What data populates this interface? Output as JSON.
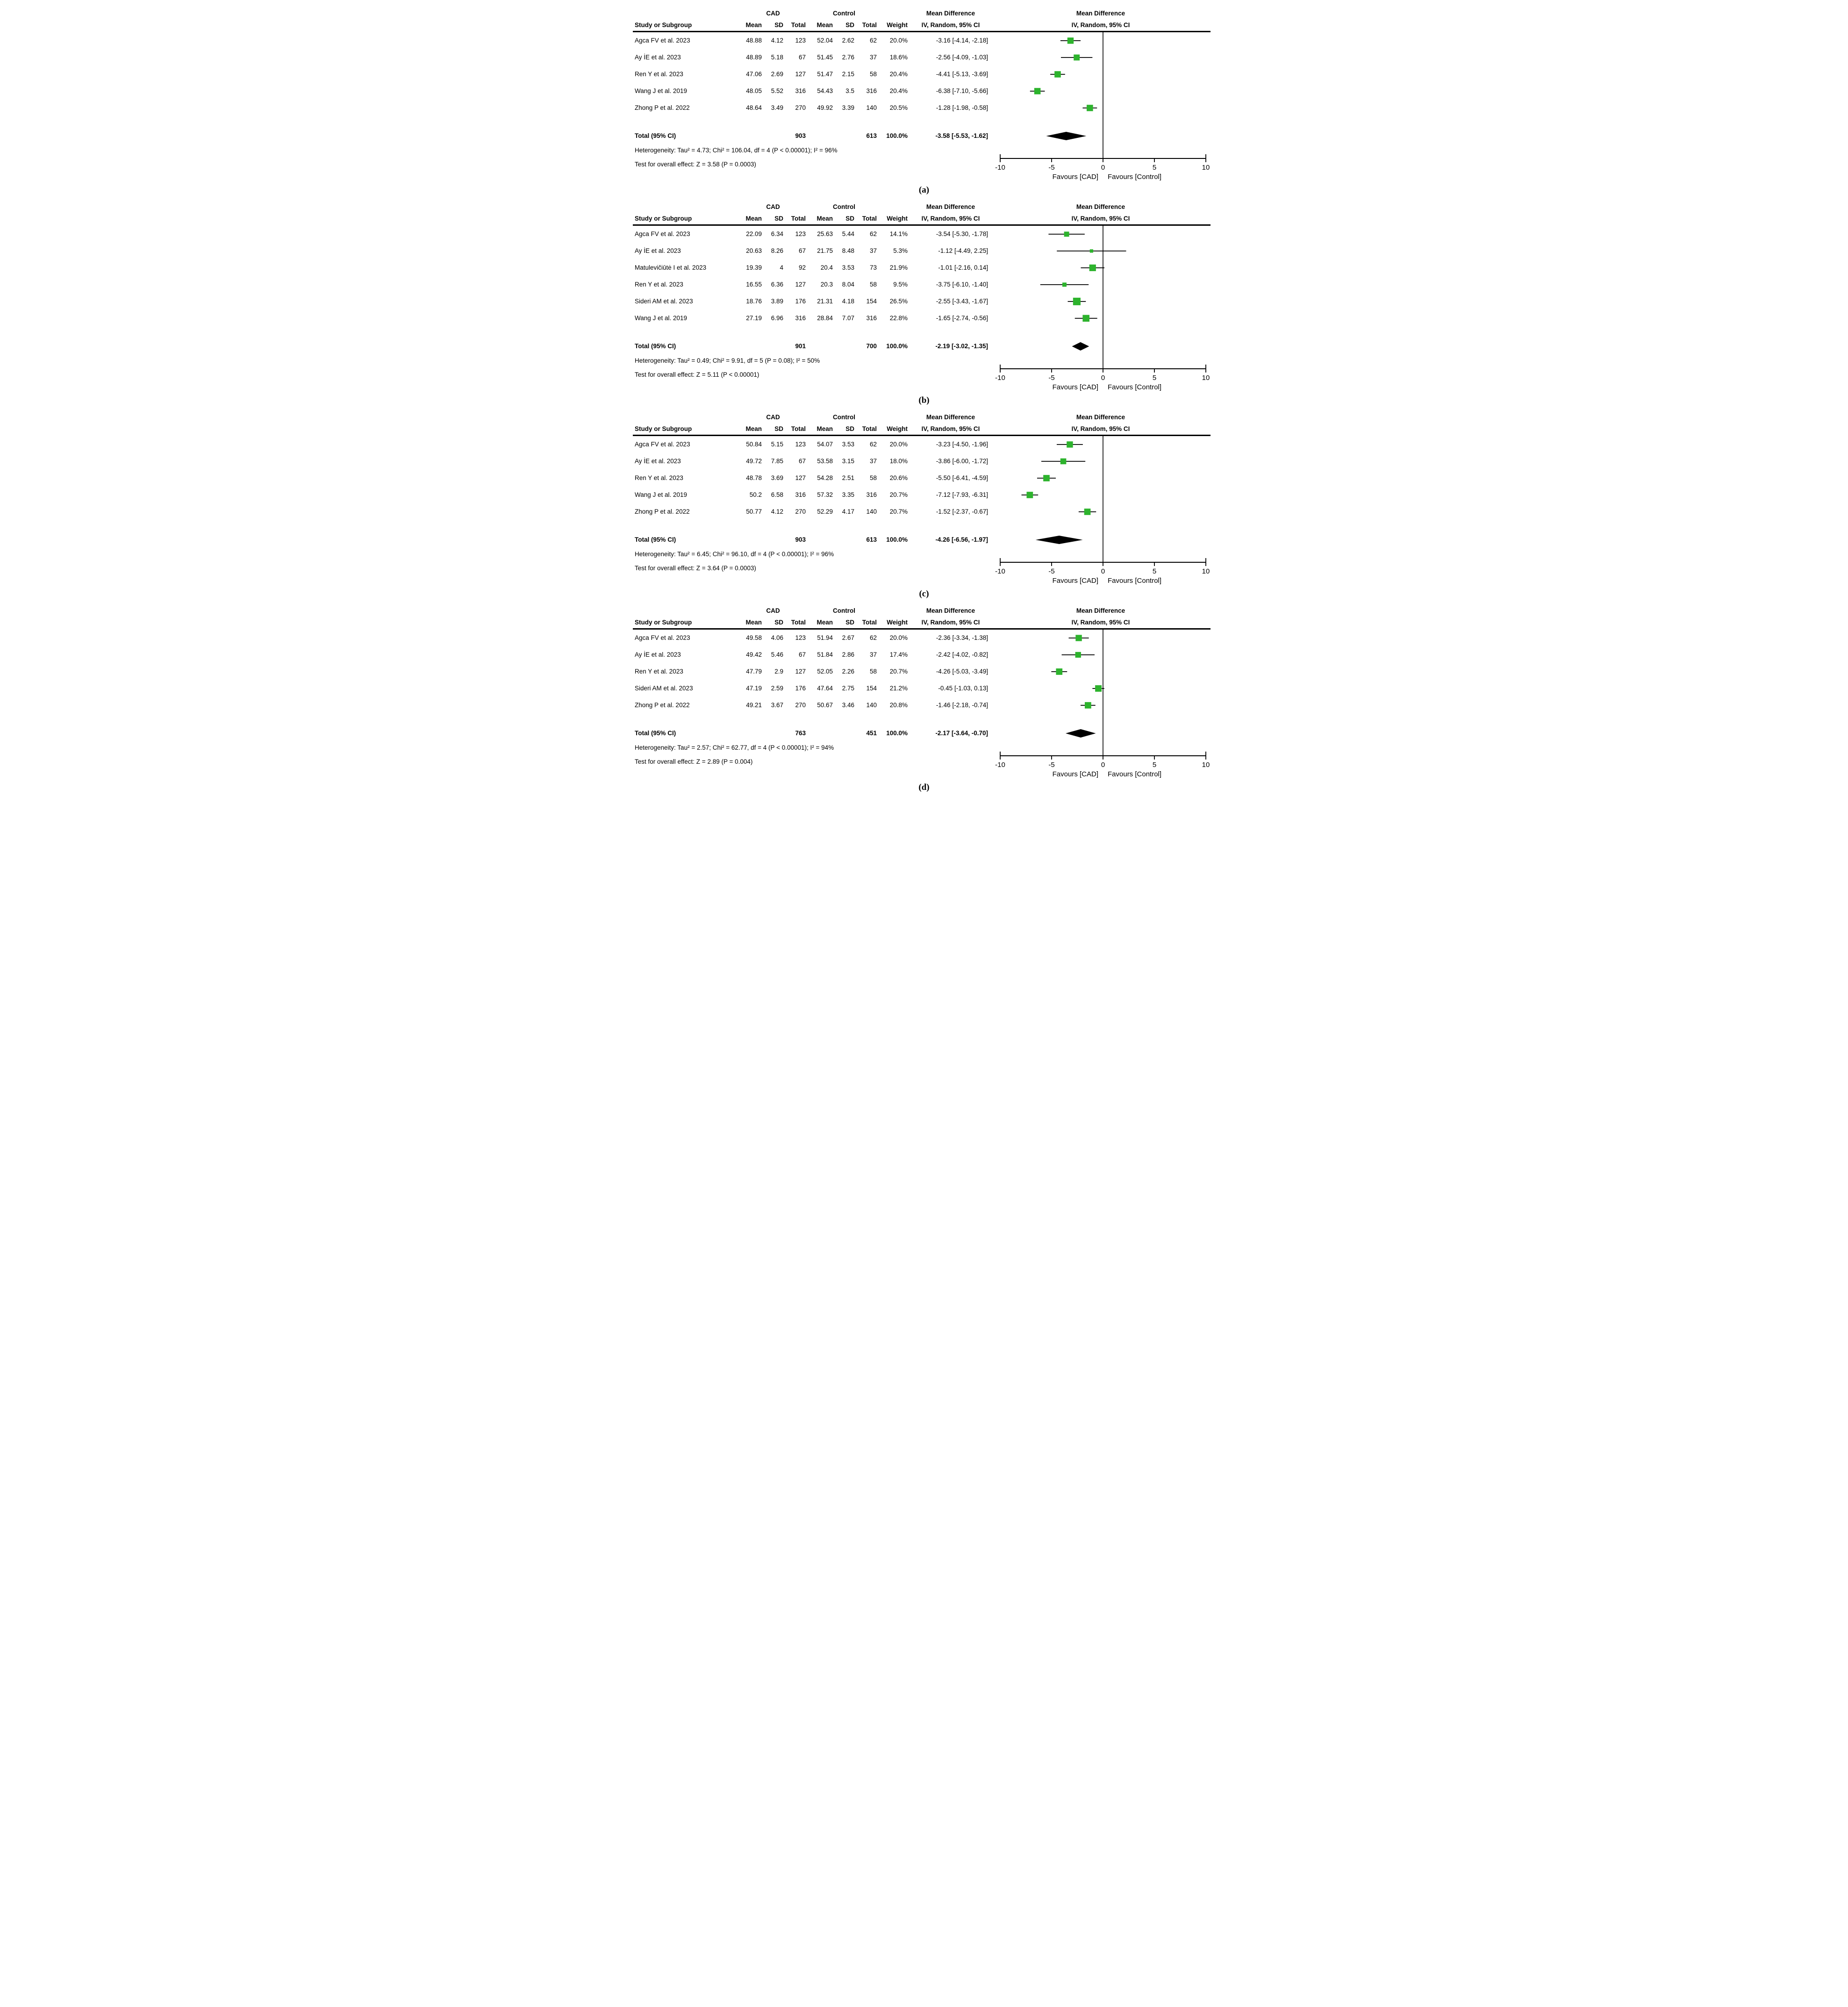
{
  "colors": {
    "marker": "#2db32d",
    "diamond": "#000000",
    "line": "#000000",
    "text": "#000000"
  },
  "chart_data": [
    {
      "type": "forest",
      "panel_label": "(a)",
      "group_headers": {
        "cad": "CAD",
        "control": "Control"
      },
      "study_col_header": "Study or Subgroup",
      "col_headers": [
        "Mean",
        "SD",
        "Total",
        "Mean",
        "SD",
        "Total",
        "Weight"
      ],
      "md_header_line1": "Mean Difference",
      "md_header_line2": "IV, Random, 95% CI",
      "plot_title_line1": "Mean Difference",
      "plot_title_line2": "IV, Random, 95% CI",
      "rows": [
        {
          "study": "Agca FV  et al. 2023",
          "cad_mean": "48.88",
          "cad_sd": "4.12",
          "cad_total": "123",
          "ctrl_mean": "52.04",
          "ctrl_sd": "2.62",
          "ctrl_total": "62",
          "weight": "20.0%",
          "weight_value": 20.0,
          "md": -3.16,
          "ci_low": -4.14,
          "ci_high": -2.18,
          "ci_text": "-3.16 [-4.14, -2.18]"
        },
        {
          "study": "Ay İE  et al. 2023",
          "cad_mean": "48.89",
          "cad_sd": "5.18",
          "cad_total": "67",
          "ctrl_mean": "51.45",
          "ctrl_sd": "2.76",
          "ctrl_total": "37",
          "weight": "18.6%",
          "weight_value": 18.6,
          "md": -2.56,
          "ci_low": -4.09,
          "ci_high": -1.03,
          "ci_text": "-2.56 [-4.09, -1.03]"
        },
        {
          "study": "Ren Y  et al. 2023",
          "cad_mean": "47.06",
          "cad_sd": "2.69",
          "cad_total": "127",
          "ctrl_mean": "51.47",
          "ctrl_sd": "2.15",
          "ctrl_total": "58",
          "weight": "20.4%",
          "weight_value": 20.4,
          "md": -4.41,
          "ci_low": -5.13,
          "ci_high": -3.69,
          "ci_text": "-4.41 [-5.13, -3.69]"
        },
        {
          "study": "Wang J  et al. 2019",
          "cad_mean": "48.05",
          "cad_sd": "5.52",
          "cad_total": "316",
          "ctrl_mean": "54.43",
          "ctrl_sd": "3.5",
          "ctrl_total": "316",
          "weight": "20.4%",
          "weight_value": 20.4,
          "md": -6.38,
          "ci_low": -7.1,
          "ci_high": -5.66,
          "ci_text": "-6.38 [-7.10, -5.66]"
        },
        {
          "study": "Zhong P  et al. 2022",
          "cad_mean": "48.64",
          "cad_sd": "3.49",
          "cad_total": "270",
          "ctrl_mean": "49.92",
          "ctrl_sd": "3.39",
          "ctrl_total": "140",
          "weight": "20.5%",
          "weight_value": 20.5,
          "md": -1.28,
          "ci_low": -1.98,
          "ci_high": -0.58,
          "ci_text": "-1.28 [-1.98, -0.58]"
        }
      ],
      "total": {
        "label": "Total (95% CI)",
        "cad_total": "903",
        "ctrl_total": "613",
        "weight": "100.0%",
        "md": -3.58,
        "ci_low": -5.53,
        "ci_high": -1.62,
        "ci_text": "-3.58 [-5.53, -1.62]"
      },
      "heterogeneity": "Heterogeneity: Tau² = 4.73; Chi² = 106.04, df = 4 (P < 0.00001); I² = 96%",
      "overall_effect": "Test for overall effect: Z = 3.58 (P = 0.0003)",
      "axis": {
        "min": -10,
        "max": 10,
        "ticks": [
          -10,
          -5,
          0,
          5,
          10
        ],
        "favours_left": "Favours [CAD]",
        "favours_right": "Favours [Control]"
      }
    },
    {
      "type": "forest",
      "panel_label": "(b)",
      "group_headers": {
        "cad": "CAD",
        "control": "Control"
      },
      "study_col_header": "Study or Subgroup",
      "col_headers": [
        "Mean",
        "SD",
        "Total",
        "Mean",
        "SD",
        "Total",
        "Weight"
      ],
      "md_header_line1": "Mean Difference",
      "md_header_line2": "IV, Random, 95% CI",
      "plot_title_line1": "Mean Difference",
      "plot_title_line2": "IV, Random, 95% CI",
      "rows": [
        {
          "study": "Agca FV  et al. 2023",
          "cad_mean": "22.09",
          "cad_sd": "6.34",
          "cad_total": "123",
          "ctrl_mean": "25.63",
          "ctrl_sd": "5.44",
          "ctrl_total": "62",
          "weight": "14.1%",
          "weight_value": 14.1,
          "md": -3.54,
          "ci_low": -5.3,
          "ci_high": -1.78,
          "ci_text": "-3.54 [-5.30, -1.78]"
        },
        {
          "study": "Ay İE  et al. 2023",
          "cad_mean": "20.63",
          "cad_sd": "8.26",
          "cad_total": "67",
          "ctrl_mean": "21.75",
          "ctrl_sd": "8.48",
          "ctrl_total": "37",
          "weight": "5.3%",
          "weight_value": 5.3,
          "md": -1.12,
          "ci_low": -4.49,
          "ci_high": 2.25,
          "ci_text": "-1.12 [-4.49, 2.25]"
        },
        {
          "study": "Matulevičiūtė I  et al. 2023",
          "cad_mean": "19.39",
          "cad_sd": "4",
          "cad_total": "92",
          "ctrl_mean": "20.4",
          "ctrl_sd": "3.53",
          "ctrl_total": "73",
          "weight": "21.9%",
          "weight_value": 21.9,
          "md": -1.01,
          "ci_low": -2.16,
          "ci_high": 0.14,
          "ci_text": "-1.01 [-2.16, 0.14]"
        },
        {
          "study": "Ren Y  et al. 2023",
          "cad_mean": "16.55",
          "cad_sd": "6.36",
          "cad_total": "127",
          "ctrl_mean": "20.3",
          "ctrl_sd": "8.04",
          "ctrl_total": "58",
          "weight": "9.5%",
          "weight_value": 9.5,
          "md": -3.75,
          "ci_low": -6.1,
          "ci_high": -1.4,
          "ci_text": "-3.75 [-6.10, -1.40]"
        },
        {
          "study": "Sideri AM  et al. 2023",
          "cad_mean": "18.76",
          "cad_sd": "3.89",
          "cad_total": "176",
          "ctrl_mean": "21.31",
          "ctrl_sd": "4.18",
          "ctrl_total": "154",
          "weight": "26.5%",
          "weight_value": 26.5,
          "md": -2.55,
          "ci_low": -3.43,
          "ci_high": -1.67,
          "ci_text": "-2.55 [-3.43, -1.67]"
        },
        {
          "study": "Wang J  et al. 2019",
          "cad_mean": "27.19",
          "cad_sd": "6.96",
          "cad_total": "316",
          "ctrl_mean": "28.84",
          "ctrl_sd": "7.07",
          "ctrl_total": "316",
          "weight": "22.8%",
          "weight_value": 22.8,
          "md": -1.65,
          "ci_low": -2.74,
          "ci_high": -0.56,
          "ci_text": "-1.65 [-2.74, -0.56]"
        }
      ],
      "total": {
        "label": "Total (95% CI)",
        "cad_total": "901",
        "ctrl_total": "700",
        "weight": "100.0%",
        "md": -2.19,
        "ci_low": -3.02,
        "ci_high": -1.35,
        "ci_text": "-2.19 [-3.02, -1.35]"
      },
      "heterogeneity": "Heterogeneity: Tau² = 0.49; Chi² = 9.91, df = 5 (P = 0.08); I² = 50%",
      "overall_effect": "Test for overall effect: Z = 5.11 (P < 0.00001)",
      "axis": {
        "min": -10,
        "max": 10,
        "ticks": [
          -10,
          -5,
          0,
          5,
          10
        ],
        "favours_left": "Favours [CAD]",
        "favours_right": "Favours [Control]"
      }
    },
    {
      "type": "forest",
      "panel_label": "(c)",
      "group_headers": {
        "cad": "CAD",
        "control": "Control"
      },
      "study_col_header": "Study or Subgroup",
      "col_headers": [
        "Mean",
        "SD",
        "Total",
        "Mean",
        "SD",
        "Total",
        "Weight"
      ],
      "md_header_line1": "Mean Difference",
      "md_header_line2": "IV, Random, 95% CI",
      "plot_title_line1": "Mean Difference",
      "plot_title_line2": "IV, Random, 95% CI",
      "rows": [
        {
          "study": "Agca FV  et al. 2023",
          "cad_mean": "50.84",
          "cad_sd": "5.15",
          "cad_total": "123",
          "ctrl_mean": "54.07",
          "ctrl_sd": "3.53",
          "ctrl_total": "62",
          "weight": "20.0%",
          "weight_value": 20.0,
          "md": -3.23,
          "ci_low": -4.5,
          "ci_high": -1.96,
          "ci_text": "-3.23 [-4.50, -1.96]"
        },
        {
          "study": "Ay İE  et al. 2023",
          "cad_mean": "49.72",
          "cad_sd": "7.85",
          "cad_total": "67",
          "ctrl_mean": "53.58",
          "ctrl_sd": "3.15",
          "ctrl_total": "37",
          "weight": "18.0%",
          "weight_value": 18.0,
          "md": -3.86,
          "ci_low": -6.0,
          "ci_high": -1.72,
          "ci_text": "-3.86 [-6.00, -1.72]"
        },
        {
          "study": "Ren Y  et al. 2023",
          "cad_mean": "48.78",
          "cad_sd": "3.69",
          "cad_total": "127",
          "ctrl_mean": "54.28",
          "ctrl_sd": "2.51",
          "ctrl_total": "58",
          "weight": "20.6%",
          "weight_value": 20.6,
          "md": -5.5,
          "ci_low": -6.41,
          "ci_high": -4.59,
          "ci_text": "-5.50 [-6.41, -4.59]"
        },
        {
          "study": "Wang J  et al. 2019",
          "cad_mean": "50.2",
          "cad_sd": "6.58",
          "cad_total": "316",
          "ctrl_mean": "57.32",
          "ctrl_sd": "3.35",
          "ctrl_total": "316",
          "weight": "20.7%",
          "weight_value": 20.7,
          "md": -7.12,
          "ci_low": -7.93,
          "ci_high": -6.31,
          "ci_text": "-7.12 [-7.93, -6.31]"
        },
        {
          "study": "Zhong P  et al. 2022",
          "cad_mean": "50.77",
          "cad_sd": "4.12",
          "cad_total": "270",
          "ctrl_mean": "52.29",
          "ctrl_sd": "4.17",
          "ctrl_total": "140",
          "weight": "20.7%",
          "weight_value": 20.7,
          "md": -1.52,
          "ci_low": -2.37,
          "ci_high": -0.67,
          "ci_text": "-1.52 [-2.37, -0.67]"
        }
      ],
      "total": {
        "label": "Total (95% CI)",
        "cad_total": "903",
        "ctrl_total": "613",
        "weight": "100.0%",
        "md": -4.26,
        "ci_low": -6.56,
        "ci_high": -1.97,
        "ci_text": "-4.26 [-6.56, -1.97]"
      },
      "heterogeneity": "Heterogeneity: Tau² = 6.45; Chi² = 96.10, df = 4 (P < 0.00001); I² = 96%",
      "overall_effect": "Test for overall effect: Z = 3.64 (P = 0.0003)",
      "axis": {
        "min": -10,
        "max": 10,
        "ticks": [
          -10,
          -5,
          0,
          5,
          10
        ],
        "favours_left": "Favours [CAD]",
        "favours_right": "Favours [Control]"
      }
    },
    {
      "type": "forest",
      "panel_label": "(d)",
      "group_headers": {
        "cad": "CAD",
        "control": "Control"
      },
      "study_col_header": "Study or Subgroup",
      "col_headers": [
        "Mean",
        "SD",
        "Total",
        "Mean",
        "SD",
        "Total",
        "Weight"
      ],
      "md_header_line1": "Mean Difference",
      "md_header_line2": "IV, Random, 95% CI",
      "plot_title_line1": "Mean Difference",
      "plot_title_line2": "IV, Random, 95% CI",
      "rows": [
        {
          "study": "Agca FV  et al. 2023",
          "cad_mean": "49.58",
          "cad_sd": "4.06",
          "cad_total": "123",
          "ctrl_mean": "51.94",
          "ctrl_sd": "2.67",
          "ctrl_total": "62",
          "weight": "20.0%",
          "weight_value": 20.0,
          "md": -2.36,
          "ci_low": -3.34,
          "ci_high": -1.38,
          "ci_text": "-2.36 [-3.34, -1.38]"
        },
        {
          "study": "Ay İE  et al. 2023",
          "cad_mean": "49.42",
          "cad_sd": "5.46",
          "cad_total": "67",
          "ctrl_mean": "51.84",
          "ctrl_sd": "2.86",
          "ctrl_total": "37",
          "weight": "17.4%",
          "weight_value": 17.4,
          "md": -2.42,
          "ci_low": -4.02,
          "ci_high": -0.82,
          "ci_text": "-2.42 [-4.02, -0.82]"
        },
        {
          "study": "Ren Y  et al. 2023",
          "cad_mean": "47.79",
          "cad_sd": "2.9",
          "cad_total": "127",
          "ctrl_mean": "52.05",
          "ctrl_sd": "2.26",
          "ctrl_total": "58",
          "weight": "20.7%",
          "weight_value": 20.7,
          "md": -4.26,
          "ci_low": -5.03,
          "ci_high": -3.49,
          "ci_text": "-4.26 [-5.03, -3.49]"
        },
        {
          "study": "Sideri AM  et al. 2023",
          "cad_mean": "47.19",
          "cad_sd": "2.59",
          "cad_total": "176",
          "ctrl_mean": "47.64",
          "ctrl_sd": "2.75",
          "ctrl_total": "154",
          "weight": "21.2%",
          "weight_value": 21.2,
          "md": -0.45,
          "ci_low": -1.03,
          "ci_high": 0.13,
          "ci_text": "-0.45 [-1.03, 0.13]"
        },
        {
          "study": "Zhong P  et al. 2022",
          "cad_mean": "49.21",
          "cad_sd": "3.67",
          "cad_total": "270",
          "ctrl_mean": "50.67",
          "ctrl_sd": "3.46",
          "ctrl_total": "140",
          "weight": "20.8%",
          "weight_value": 20.8,
          "md": -1.46,
          "ci_low": -2.18,
          "ci_high": -0.74,
          "ci_text": "-1.46 [-2.18, -0.74]"
        }
      ],
      "total": {
        "label": "Total (95% CI)",
        "cad_total": "763",
        "ctrl_total": "451",
        "weight": "100.0%",
        "md": -2.17,
        "ci_low": -3.64,
        "ci_high": -0.7,
        "ci_text": "-2.17 [-3.64, -0.70]"
      },
      "heterogeneity": "Heterogeneity: Tau² = 2.57; Chi² = 62.77, df = 4 (P < 0.00001); I² = 94%",
      "overall_effect": "Test for overall effect: Z = 2.89 (P = 0.004)",
      "axis": {
        "min": -10,
        "max": 10,
        "ticks": [
          -10,
          -5,
          0,
          5,
          10
        ],
        "favours_left": "Favours [CAD]",
        "favours_right": "Favours [Control]"
      }
    }
  ]
}
